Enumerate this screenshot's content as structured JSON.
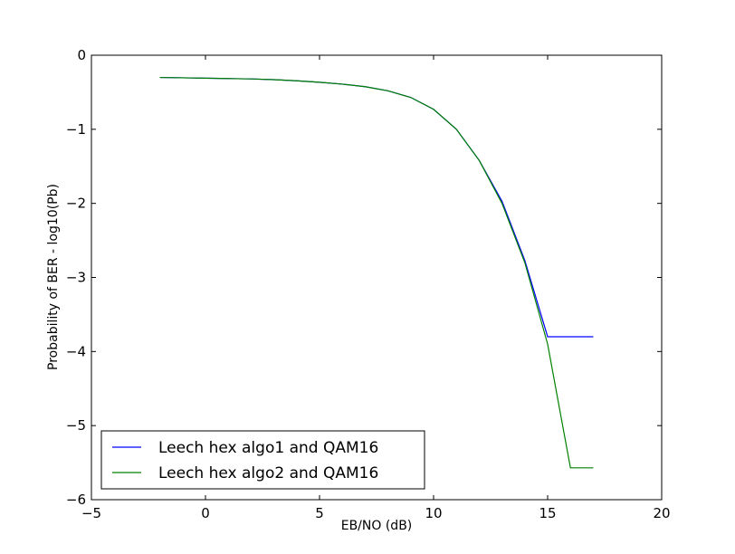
{
  "chart_data": {
    "type": "line",
    "xlabel": "EB/NO (dB)",
    "ylabel": "Probability of BER - log10(Pb)",
    "xlim": [
      -5,
      20
    ],
    "ylim": [
      -6,
      0
    ],
    "xticks": [
      -5,
      0,
      5,
      10,
      15,
      20
    ],
    "xtick_labels": [
      "−5",
      "0",
      "5",
      "10",
      "15",
      "20"
    ],
    "yticks": [
      0,
      -1,
      -2,
      -3,
      -4,
      -5,
      -6
    ],
    "ytick_labels": [
      "0",
      "−1",
      "−2",
      "−3",
      "−4",
      "−5",
      "−6"
    ],
    "grid": false,
    "legend_position": "lower-left",
    "series": [
      {
        "name": "Leech hex algo1 and QAM16",
        "color": "#0000ff",
        "x": [
          -2,
          -1,
          0,
          1,
          2,
          3,
          4,
          5,
          6,
          7,
          8,
          9,
          10,
          11,
          12,
          13,
          14,
          15,
          16,
          17
        ],
        "y": [
          -0.3,
          -0.305,
          -0.31,
          -0.315,
          -0.32,
          -0.33,
          -0.345,
          -0.365,
          -0.39,
          -0.425,
          -0.48,
          -0.57,
          -0.73,
          -1.0,
          -1.42,
          -1.97,
          -2.77,
          -3.8,
          -3.8,
          -3.8
        ]
      },
      {
        "name": "Leech hex algo2 and QAM16",
        "color": "#008000",
        "x": [
          -2,
          -1,
          0,
          1,
          2,
          3,
          4,
          5,
          6,
          7,
          8,
          9,
          10,
          11,
          12,
          13,
          14,
          15,
          16,
          17
        ],
        "y": [
          -0.3,
          -0.305,
          -0.31,
          -0.315,
          -0.32,
          -0.33,
          -0.345,
          -0.365,
          -0.39,
          -0.425,
          -0.48,
          -0.57,
          -0.73,
          -1.0,
          -1.42,
          -2.0,
          -2.8,
          -3.9,
          -5.57,
          -5.57
        ]
      }
    ]
  }
}
